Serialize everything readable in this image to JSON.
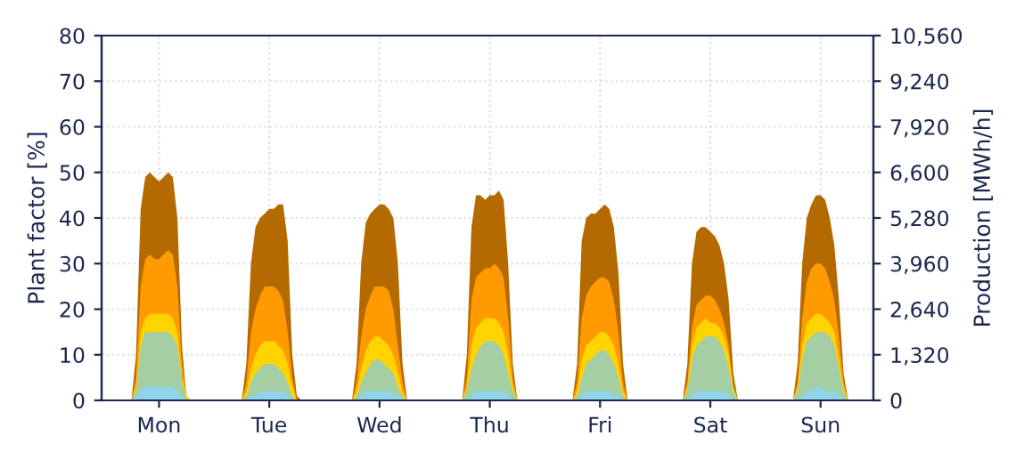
{
  "chart_data": {
    "type": "area",
    "ylabel": "Plant factor [%]",
    "y2label": "Production [MWh/h]",
    "categories": [
      null,
      null,
      null,
      null,
      null,
      null,
      null,
      null,
      null,
      null,
      null,
      null,
      "Mon",
      null,
      null,
      null,
      null,
      null,
      null,
      null,
      null,
      null,
      null,
      null,
      null,
      null,
      null,
      null,
      null,
      null,
      null,
      null,
      null,
      null,
      null,
      null,
      "Tue",
      null,
      null,
      null,
      null,
      null,
      null,
      null,
      null,
      null,
      null,
      null,
      null,
      null,
      null,
      null,
      null,
      null,
      null,
      null,
      null,
      null,
      null,
      null,
      "Wed",
      null,
      null,
      null,
      null,
      null,
      null,
      null,
      null,
      null,
      null,
      null,
      null,
      null,
      null,
      null,
      null,
      null,
      null,
      null,
      null,
      null,
      null,
      null,
      "Thu",
      null,
      null,
      null,
      null,
      null,
      null,
      null,
      null,
      null,
      null,
      null,
      null,
      null,
      null,
      null,
      null,
      null,
      null,
      null,
      null,
      null,
      null,
      null,
      "Fri",
      null,
      null,
      null,
      null,
      null,
      null,
      null,
      null,
      null,
      null,
      null,
      null,
      null,
      null,
      null,
      null,
      null,
      null,
      null,
      null,
      null,
      null,
      null,
      "Sat",
      null,
      null,
      null,
      null,
      null,
      null,
      null,
      null,
      null,
      null,
      null,
      null,
      null,
      null,
      null,
      null,
      null,
      null,
      null,
      null,
      null,
      null,
      null,
      "Sun",
      null,
      null,
      null,
      null,
      null,
      null,
      null,
      null,
      null,
      null,
      null
    ],
    "series": [
      {
        "color": "#b56a00",
        "values": [
          0,
          0,
          0,
          0,
          0,
          0,
          0,
          10,
          42,
          49,
          50,
          49,
          48,
          49,
          50,
          49,
          40,
          12,
          0,
          0,
          0,
          0,
          0,
          0,
          0,
          0,
          0,
          0,
          0,
          0,
          0,
          8,
          30,
          38,
          40,
          41,
          42,
          42,
          43,
          43,
          35,
          10,
          1,
          0,
          0,
          0,
          0,
          0,
          0,
          0,
          0,
          0,
          0,
          0,
          0,
          8,
          30,
          39,
          41,
          42,
          43,
          43,
          42,
          40,
          30,
          8,
          0,
          0,
          0,
          0,
          0,
          0,
          0,
          0,
          0,
          0,
          0,
          0,
          0,
          10,
          38,
          45,
          45,
          44,
          45,
          45,
          46,
          44,
          30,
          8,
          0,
          0,
          0,
          0,
          0,
          0,
          0,
          0,
          0,
          0,
          0,
          0,
          0,
          8,
          35,
          40,
          41,
          41,
          42,
          43,
          42,
          38,
          28,
          8,
          0,
          0,
          0,
          0,
          0,
          0,
          0,
          0,
          0,
          0,
          0,
          0,
          0,
          8,
          30,
          37,
          38,
          38,
          37,
          36,
          34,
          30,
          22,
          6,
          0,
          0,
          0,
          0,
          0,
          0,
          0,
          0,
          0,
          0,
          0,
          0,
          0,
          8,
          30,
          40,
          43,
          45,
          45,
          44,
          40,
          34,
          22,
          6,
          0,
          0,
          0,
          0,
          0,
          0
        ]
      },
      {
        "color": "#ff9a00",
        "values": [
          0,
          0,
          0,
          0,
          0,
          0,
          0,
          5,
          25,
          31,
          32,
          31,
          31,
          32,
          33,
          32,
          25,
          8,
          1,
          0,
          0,
          0,
          0,
          0,
          0,
          0,
          0,
          0,
          0,
          0,
          0,
          4,
          15,
          20,
          23,
          25,
          25,
          25,
          24,
          22,
          15,
          5,
          0,
          0,
          0,
          0,
          0,
          0,
          0,
          0,
          0,
          0,
          0,
          0,
          0,
          4,
          14,
          20,
          23,
          25,
          25,
          25,
          24,
          20,
          12,
          4,
          0,
          0,
          0,
          0,
          0,
          0,
          0,
          0,
          0,
          0,
          0,
          0,
          0,
          5,
          22,
          27,
          28,
          29,
          29,
          30,
          29,
          27,
          18,
          5,
          0,
          0,
          0,
          0,
          0,
          0,
          0,
          0,
          0,
          0,
          0,
          0,
          0,
          4,
          18,
          23,
          25,
          26,
          27,
          27,
          26,
          22,
          15,
          4,
          0,
          0,
          0,
          0,
          0,
          0,
          0,
          0,
          0,
          0,
          0,
          0,
          0,
          4,
          16,
          21,
          22,
          23,
          23,
          22,
          20,
          17,
          12,
          3,
          0,
          0,
          0,
          0,
          0,
          0,
          0,
          0,
          0,
          0,
          0,
          0,
          0,
          4,
          18,
          26,
          29,
          30,
          30,
          29,
          26,
          22,
          14,
          4,
          0,
          0,
          0,
          0,
          0,
          0
        ]
      },
      {
        "color": "#ffd400",
        "values": [
          0,
          0,
          0,
          0,
          0,
          0,
          0,
          3,
          15,
          18,
          19,
          19,
          19,
          19,
          19,
          18,
          15,
          5,
          1,
          0,
          0,
          0,
          0,
          0,
          0,
          0,
          0,
          0,
          0,
          0,
          0,
          2,
          7,
          10,
          12,
          13,
          13,
          13,
          12,
          11,
          8,
          3,
          0,
          0,
          0,
          0,
          0,
          0,
          0,
          0,
          0,
          0,
          0,
          0,
          0,
          2,
          7,
          11,
          13,
          14,
          14,
          13,
          12,
          10,
          6,
          2,
          0,
          0,
          0,
          0,
          0,
          0,
          0,
          0,
          0,
          0,
          0,
          0,
          0,
          3,
          12,
          16,
          17,
          18,
          18,
          18,
          17,
          15,
          10,
          3,
          0,
          0,
          0,
          0,
          0,
          0,
          0,
          0,
          0,
          0,
          0,
          0,
          0,
          2,
          9,
          12,
          13,
          14,
          15,
          15,
          14,
          12,
          8,
          2,
          0,
          0,
          0,
          0,
          0,
          0,
          0,
          0,
          0,
          0,
          0,
          0,
          0,
          3,
          12,
          16,
          17,
          18,
          17,
          17,
          16,
          14,
          10,
          3,
          0,
          0,
          0,
          0,
          0,
          0,
          0,
          0,
          0,
          0,
          0,
          0,
          0,
          3,
          12,
          17,
          18,
          19,
          19,
          18,
          17,
          15,
          9,
          3,
          0,
          0,
          0,
          0,
          0,
          0
        ]
      },
      {
        "color": "#a4cfa4",
        "values": [
          0,
          0,
          0,
          0,
          0,
          0,
          0,
          2,
          12,
          15,
          15,
          15,
          15,
          15,
          15,
          14,
          12,
          4,
          0,
          0,
          0,
          0,
          0,
          0,
          0,
          0,
          0,
          0,
          0,
          0,
          0,
          1,
          4,
          6,
          7,
          8,
          8,
          8,
          7,
          6,
          4,
          1,
          0,
          0,
          0,
          0,
          0,
          0,
          0,
          0,
          0,
          0,
          0,
          0,
          0,
          1,
          4,
          6,
          8,
          9,
          9,
          8,
          7,
          6,
          3,
          1,
          0,
          0,
          0,
          0,
          0,
          0,
          0,
          0,
          0,
          0,
          0,
          0,
          0,
          2,
          7,
          10,
          12,
          13,
          13,
          13,
          12,
          10,
          6,
          2,
          0,
          0,
          0,
          0,
          0,
          0,
          0,
          0,
          0,
          0,
          0,
          0,
          0,
          1,
          5,
          8,
          9,
          10,
          11,
          11,
          10,
          8,
          5,
          1,
          0,
          0,
          0,
          0,
          0,
          0,
          0,
          0,
          0,
          0,
          0,
          0,
          0,
          2,
          9,
          12,
          13,
          14,
          14,
          14,
          13,
          11,
          7,
          2,
          0,
          0,
          0,
          0,
          0,
          0,
          0,
          0,
          0,
          0,
          0,
          0,
          0,
          2,
          9,
          13,
          14,
          15,
          15,
          15,
          14,
          12,
          7,
          2,
          0,
          0,
          0,
          0,
          0,
          0
        ]
      },
      {
        "color": "#8fd4ea",
        "values": [
          0,
          0,
          0,
          0,
          0,
          0,
          0,
          1,
          2,
          3,
          3,
          3,
          3,
          3,
          3,
          3,
          2,
          1,
          0,
          0,
          0,
          0,
          0,
          0,
          0,
          0,
          0,
          0,
          0,
          0,
          0,
          0,
          1,
          1,
          2,
          2,
          2,
          2,
          2,
          2,
          1,
          0,
          0,
          0,
          0,
          0,
          0,
          0,
          0,
          0,
          0,
          0,
          0,
          0,
          0,
          0,
          1,
          2,
          2,
          2,
          2,
          2,
          2,
          1,
          1,
          0,
          0,
          0,
          0,
          0,
          0,
          0,
          0,
          0,
          0,
          0,
          0,
          0,
          0,
          0,
          1,
          2,
          2,
          2,
          2,
          2,
          2,
          2,
          1,
          0,
          0,
          0,
          0,
          0,
          0,
          0,
          0,
          0,
          0,
          0,
          0,
          0,
          0,
          0,
          1,
          2,
          2,
          2,
          2,
          2,
          2,
          1,
          1,
          0,
          0,
          0,
          0,
          0,
          0,
          0,
          0,
          0,
          0,
          0,
          0,
          0,
          0,
          0,
          1,
          2,
          2,
          2,
          2,
          2,
          2,
          2,
          1,
          0,
          0,
          0,
          0,
          0,
          0,
          0,
          0,
          0,
          0,
          0,
          0,
          0,
          0,
          0,
          1,
          2,
          2,
          3,
          3,
          2,
          2,
          2,
          1,
          0,
          0,
          0,
          0,
          0,
          0,
          0
        ]
      }
    ],
    "ylim": [
      0,
      80
    ],
    "yticks": [
      0,
      10,
      20,
      30,
      40,
      50,
      60,
      70,
      80
    ],
    "y2lim": [
      0,
      10560
    ],
    "y2ticks": [
      {
        "value": 0,
        "label": "0"
      },
      {
        "value": 1320,
        "label": "1,320"
      },
      {
        "value": 2640,
        "label": "2,640"
      },
      {
        "value": 3960,
        "label": "3,960"
      },
      {
        "value": 5280,
        "label": "5,280"
      },
      {
        "value": 6600,
        "label": "6,600"
      },
      {
        "value": 7920,
        "label": "7,920"
      },
      {
        "value": 9240,
        "label": "9,240"
      },
      {
        "value": 10560,
        "label": "10,560"
      }
    ],
    "grid": true
  }
}
